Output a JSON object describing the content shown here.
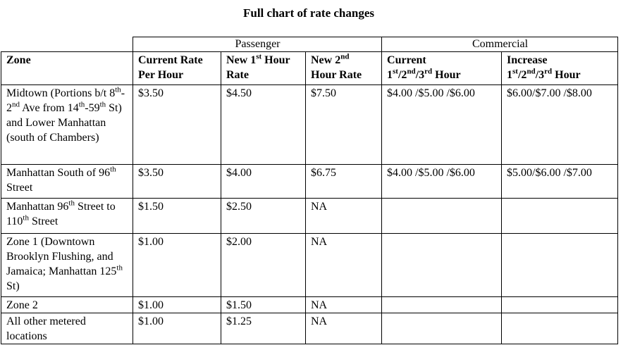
{
  "title": "Full chart of rate changes",
  "groups": {
    "passenger": "Passenger",
    "commercial": "Commercial"
  },
  "headers": {
    "zone": "Zone",
    "current_rate": {
      "line1": "Current Rate",
      "line2": "Per Hour"
    },
    "new_1st": {
      "pre": "New 1",
      "sup": "st",
      "post": " Hour",
      "line2": "Rate"
    },
    "new_2nd": {
      "pre": "New 2",
      "sup": "nd",
      "line2": "Hour Rate"
    },
    "comm_current": {
      "line1": "Current",
      "a": "1",
      "a_sup": "st",
      "b": "/2",
      "b_sup": "nd",
      "c": "/3",
      "c_sup": "rd",
      "d": " Hour"
    },
    "comm_increase": {
      "line1": "Increase",
      "a": "1",
      "a_sup": "st",
      "b": "/2",
      "b_sup": "nd",
      "c": "/3",
      "c_sup": "rd",
      "d": " Hour"
    }
  },
  "rows": [
    {
      "zone": {
        "p1": "Midtown (Portions b/t 8",
        "s1": "th",
        "p2": "-2",
        "s2": "nd",
        "p3": " Ave from 14",
        "s3": "th",
        "p4": "-59",
        "s4": "th",
        "p5": " St) and Lower Manhattan (south of Chambers)"
      },
      "current": "$3.50",
      "new1": "$4.50",
      "new2": "$7.50",
      "comm_current": "$4.00 /$5.00 /$6.00",
      "comm_increase": "$6.00/$7.00 /$8.00"
    },
    {
      "zone": {
        "p1": "Manhattan South of 96",
        "s1": "th",
        "p2": " Street"
      },
      "current": "$3.50",
      "new1": "$4.00",
      "new2": "$6.75",
      "comm_current": "$4.00 /$5.00 /$6.00",
      "comm_increase": "$5.00/$6.00 /$7.00"
    },
    {
      "zone": {
        "p1": "Manhattan 96",
        "s1": "th",
        "p2": " Street to 110",
        "s2": "th",
        "p3": " Street"
      },
      "current": "$1.50",
      "new1": "$2.50",
      "new2": "NA",
      "comm_current": "",
      "comm_increase": ""
    },
    {
      "zone": {
        "p1": "Zone 1 (Downtown Brooklyn Flushing, and Jamaica; Manhattan 125",
        "s1": "th",
        "p2": " St)"
      },
      "current": "$1.00",
      "new1": "$2.00",
      "new2": "NA",
      "comm_current": "",
      "comm_increase": ""
    },
    {
      "zone": {
        "p1": "Zone 2"
      },
      "current": "$1.00",
      "new1": "$1.50",
      "new2": "NA",
      "comm_current": "",
      "comm_increase": ""
    },
    {
      "zone": {
        "p1": "All other metered locations"
      },
      "current": "$1.00",
      "new1": "$1.25",
      "new2": "NA",
      "comm_current": "",
      "comm_increase": ""
    }
  ]
}
